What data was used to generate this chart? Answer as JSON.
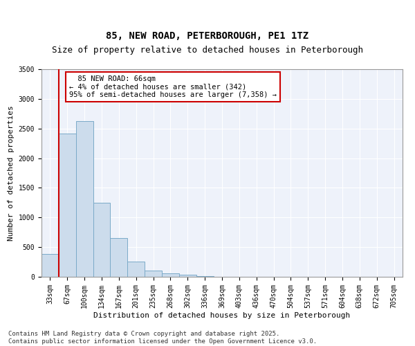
{
  "title_line1": "85, NEW ROAD, PETERBOROUGH, PE1 1TZ",
  "title_line2": "Size of property relative to detached houses in Peterborough",
  "xlabel": "Distribution of detached houses by size in Peterborough",
  "ylabel": "Number of detached properties",
  "bar_color": "#ccdcec",
  "bar_edge_color": "#7aaac8",
  "highlight_line_color": "#cc0000",
  "background_color": "#eef2fa",
  "grid_color": "#ffffff",
  "categories": [
    "33sqm",
    "67sqm",
    "100sqm",
    "134sqm",
    "167sqm",
    "201sqm",
    "235sqm",
    "268sqm",
    "302sqm",
    "336sqm",
    "369sqm",
    "403sqm",
    "436sqm",
    "470sqm",
    "504sqm",
    "537sqm",
    "571sqm",
    "604sqm",
    "638sqm",
    "672sqm",
    "705sqm"
  ],
  "values": [
    380,
    2420,
    2630,
    1250,
    650,
    260,
    105,
    55,
    35,
    10,
    5,
    0,
    0,
    0,
    0,
    0,
    0,
    0,
    0,
    0,
    0
  ],
  "annotation_text": "  85 NEW ROAD: 66sqm\n← 4% of detached houses are smaller (342)\n95% of semi-detached houses are larger (7,358) →",
  "annotation_bar_index": 1,
  "ylim": [
    0,
    3500
  ],
  "yticks": [
    0,
    500,
    1000,
    1500,
    2000,
    2500,
    3000,
    3500
  ],
  "footnote": "Contains HM Land Registry data © Crown copyright and database right 2025.\nContains public sector information licensed under the Open Government Licence v3.0.",
  "title_fontsize": 10,
  "subtitle_fontsize": 9,
  "axis_label_fontsize": 8,
  "tick_fontsize": 7,
  "annotation_fontsize": 7.5,
  "footnote_fontsize": 6.5
}
